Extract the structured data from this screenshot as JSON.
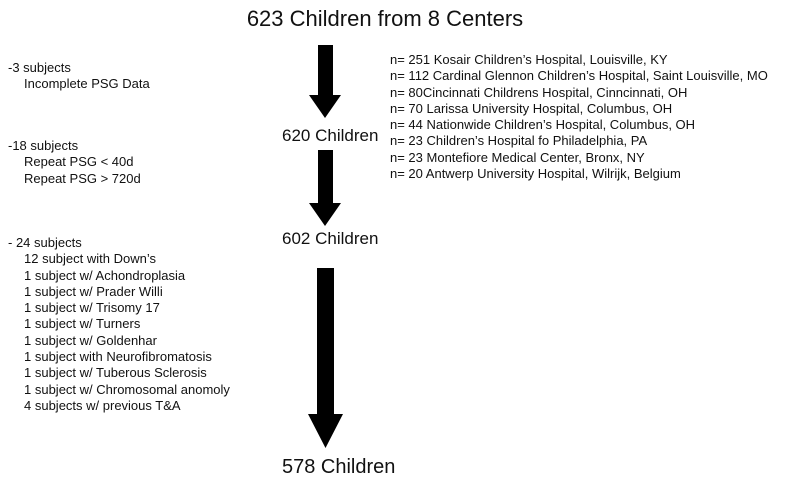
{
  "title": "623 Children from 8 Centers",
  "nodes": [
    {
      "label": "620 Children"
    },
    {
      "label": "602 Children"
    },
    {
      "label": "578 Children"
    }
  ],
  "exclusions": [
    {
      "heading": "-3 subjects",
      "items": [
        "Incomplete PSG Data"
      ]
    },
    {
      "heading": "-18 subjects",
      "items": [
        "Repeat PSG < 40d",
        "Repeat PSG > 720d"
      ]
    },
    {
      "heading": "- 24 subjects",
      "items": [
        "12 subject with Down’s",
        "1 subject w/ Achondroplasia",
        "1 subject w/ Prader Willi",
        "1 subject w/ Trisomy 17",
        "1 subject w/ Turners",
        "1 subject w/ Goldenhar",
        "1 subject with Neurofibromatosis",
        "1 subject w/ Tuberous Sclerosis",
        "1 subject w/ Chromosomal anomoly",
        "4 subjects w/ previous T&A"
      ]
    }
  ],
  "centers": [
    "n= 251 Kosair Children’s Hospital, Louisville, KY",
    "n= 112 Cardinal Glennon Children’s Hospital, Saint Louisville, MO",
    "n= 80Cincinnati Childrens Hospital, Cinncinnati, OH",
    "n= 70 Larissa University Hospital, Columbus, OH",
    "n= 44 Nationwide Children’s Hospital, Columbus, OH",
    "n= 23 Children’s Hospital fo Philadelphia, PA",
    "n= 23 Montefiore Medical Center, Bronx, NY",
    "n= 20 Antwerp University Hospital, Wilrijk, Belgium"
  ]
}
